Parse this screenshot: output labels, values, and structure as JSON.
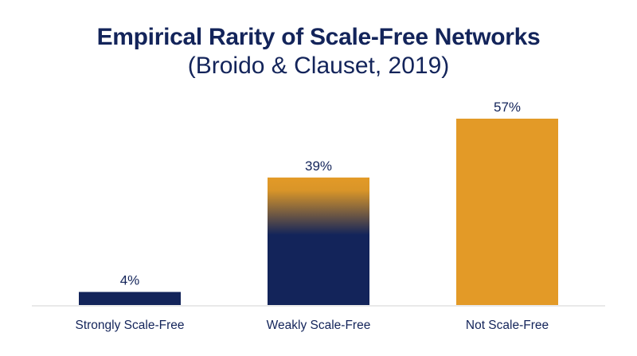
{
  "chart_data": {
    "type": "bar",
    "title": "Empirical Rarity of Scale-Free Networks",
    "subtitle": "(Broido & Clauset, 2019)",
    "categories": [
      "Strongly Scale-Free",
      "Weakly Scale-Free",
      "Not Scale-Free"
    ],
    "values": [
      4,
      39,
      57
    ],
    "value_labels": [
      "4%",
      "39%",
      "57%"
    ],
    "xlabel": "",
    "ylabel": "",
    "ylim": [
      0,
      60
    ],
    "grid": false,
    "legend": "none",
    "bar_fills": [
      "solid-navy",
      "gradient-gold-to-navy",
      "solid-gold"
    ]
  },
  "colors": {
    "navy": "#13245a",
    "gold": "#e39a27",
    "baseline": "#e2e2e2",
    "text": "#13245a"
  }
}
